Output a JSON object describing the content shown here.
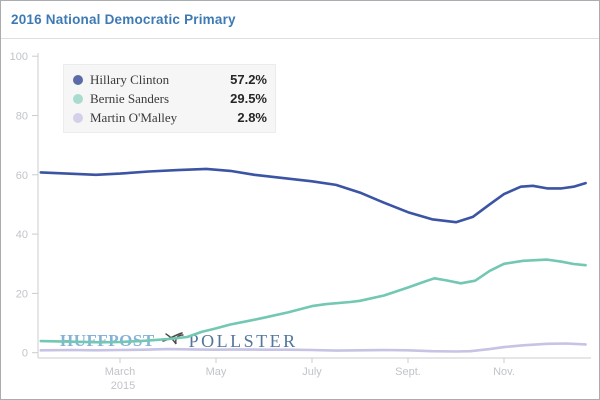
{
  "header": {
    "title": "2016 National Democratic Primary"
  },
  "watermark": {
    "brand": "HUFFPOST",
    "product": "POLLSTER",
    "logo_name": "pollster-bird-logo",
    "brand_color": "#85b2d8",
    "product_color": "#53769d"
  },
  "chart_data": {
    "type": "line",
    "title": "2016 National Democratic Primary",
    "xlabel": "",
    "ylabel": "",
    "ylim": [
      0,
      100
    ],
    "grid": false,
    "legend_position": "top-left",
    "axis_color": "#c9ccd1",
    "tick_label_color": "#c0c4ca",
    "x_axis": {
      "unit": "months-since-jan-2015",
      "ticks": [
        {
          "label": "March",
          "month": 2,
          "sublabel": "2015"
        },
        {
          "label": "May",
          "month": 4
        },
        {
          "label": "July",
          "month": 6
        },
        {
          "label": "Sept.",
          "month": 8
        },
        {
          "label": "Nov.",
          "month": 10
        }
      ]
    },
    "y_ticks": [
      0,
      20,
      40,
      60,
      80,
      100
    ],
    "series": [
      {
        "name": "Hillary Clinton",
        "current_value": 57.2,
        "value_label": "57.2%",
        "line_color": "#3b54a3",
        "swatch_color": "#5c6aaa",
        "points": [
          [
            0.35,
            60.8
          ],
          [
            0.9,
            60.4
          ],
          [
            1.5,
            60.0
          ],
          [
            2.0,
            60.4
          ],
          [
            2.6,
            61.1
          ],
          [
            3.2,
            61.6
          ],
          [
            3.8,
            62.0
          ],
          [
            4.3,
            61.3
          ],
          [
            4.8,
            60.0
          ],
          [
            5.4,
            58.9
          ],
          [
            6.0,
            57.8
          ],
          [
            6.5,
            56.6
          ],
          [
            7.0,
            54.0
          ],
          [
            7.5,
            50.6
          ],
          [
            8.0,
            47.4
          ],
          [
            8.5,
            45.0
          ],
          [
            9.0,
            44.0
          ],
          [
            9.35,
            45.8
          ],
          [
            9.7,
            50.0
          ],
          [
            10.0,
            53.5
          ],
          [
            10.35,
            56.0
          ],
          [
            10.6,
            56.3
          ],
          [
            10.9,
            55.4
          ],
          [
            11.2,
            55.4
          ],
          [
            11.45,
            56.0
          ],
          [
            11.7,
            57.2
          ]
        ]
      },
      {
        "name": "Bernie Sanders",
        "current_value": 29.5,
        "value_label": "29.5%",
        "line_color": "#72c8b2",
        "swatch_color": "#a9dcce",
        "points": [
          [
            0.35,
            3.9
          ],
          [
            1.0,
            3.7
          ],
          [
            1.6,
            3.5
          ],
          [
            2.0,
            3.6
          ],
          [
            2.5,
            4.0
          ],
          [
            3.0,
            4.6
          ],
          [
            3.4,
            5.3
          ],
          [
            3.7,
            7.0
          ],
          [
            4.0,
            8.2
          ],
          [
            4.3,
            9.5
          ],
          [
            4.7,
            10.8
          ],
          [
            5.0,
            11.8
          ],
          [
            5.5,
            13.6
          ],
          [
            6.0,
            15.7
          ],
          [
            6.3,
            16.4
          ],
          [
            6.8,
            17.1
          ],
          [
            7.0,
            17.5
          ],
          [
            7.5,
            19.3
          ],
          [
            8.0,
            22.0
          ],
          [
            8.3,
            23.7
          ],
          [
            8.55,
            25.1
          ],
          [
            8.8,
            24.4
          ],
          [
            9.1,
            23.4
          ],
          [
            9.4,
            24.3
          ],
          [
            9.7,
            27.6
          ],
          [
            10.0,
            30.0
          ],
          [
            10.4,
            31.0
          ],
          [
            10.9,
            31.4
          ],
          [
            11.2,
            30.7
          ],
          [
            11.45,
            29.9
          ],
          [
            11.7,
            29.5
          ]
        ]
      },
      {
        "name": "Martin O'Malley",
        "current_value": 2.8,
        "value_label": "2.8%",
        "line_color": "#c6c3e4",
        "swatch_color": "#d3d0ea",
        "points": [
          [
            0.35,
            0.8
          ],
          [
            1.0,
            0.9
          ],
          [
            1.5,
            0.8
          ],
          [
            2.0,
            0.9
          ],
          [
            2.5,
            1.0
          ],
          [
            3.0,
            1.2
          ],
          [
            3.5,
            1.1
          ],
          [
            4.0,
            1.0
          ],
          [
            4.5,
            1.1
          ],
          [
            5.0,
            1.0
          ],
          [
            5.5,
            1.0
          ],
          [
            6.0,
            0.9
          ],
          [
            6.5,
            0.7
          ],
          [
            7.0,
            0.8
          ],
          [
            7.5,
            0.9
          ],
          [
            8.0,
            0.8
          ],
          [
            8.5,
            0.5
          ],
          [
            9.0,
            0.4
          ],
          [
            9.3,
            0.5
          ],
          [
            9.7,
            1.2
          ],
          [
            10.0,
            1.9
          ],
          [
            10.4,
            2.5
          ],
          [
            10.9,
            3.0
          ],
          [
            11.3,
            3.1
          ],
          [
            11.7,
            2.8
          ]
        ]
      }
    ]
  }
}
